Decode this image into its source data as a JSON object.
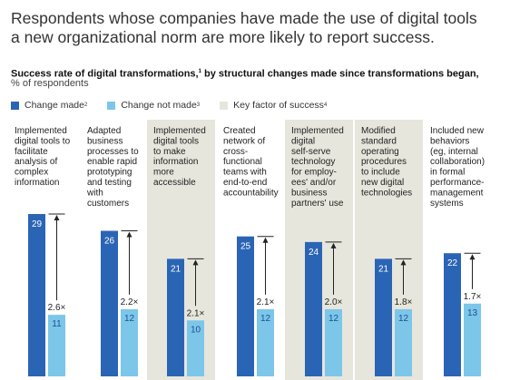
{
  "headline_line1": "Respondents whose companies have made the use of digital tools",
  "headline_line2": "a new organizational norm are more likely to report success.",
  "subtitle_main": "Success rate of digital transformations,",
  "subtitle_sup": "1",
  "subtitle_rest": " by structural changes made since transformations began,",
  "unit": "% of respondents",
  "legend": [
    {
      "label": "Change made",
      "sup": "2",
      "color": "#2a64b5"
    },
    {
      "label": "Change not made",
      "sup": "3",
      "color": "#7cc6ea"
    },
    {
      "label": "Key factor of success",
      "sup": "4",
      "color": "#e7e6dd"
    }
  ],
  "colors": {
    "change_made": "#2a64b5",
    "change_not_made": "#7cc6ea",
    "key_factor": "#e7e6dd"
  },
  "chart_data": {
    "type": "bar",
    "categories": [
      [
        "Implemented",
        "digital tools to",
        "facilitate",
        "analysis of",
        "complex",
        "information"
      ],
      [
        "Adapted",
        "business",
        "processes to",
        "enable rapid",
        "prototyping",
        "and testing",
        "with",
        "customers"
      ],
      [
        "Implemented",
        "digital tools",
        "to make",
        "information",
        "more",
        "accessible"
      ],
      [
        "Created",
        "network of",
        "cross-",
        "functional",
        "teams with",
        "end-to-end",
        "accountability"
      ],
      [
        "Implemented",
        "digital",
        "self-serve",
        "technology",
        "for employ-",
        "ees' and/or",
        "business",
        "partners' use"
      ],
      [
        "Modified",
        "standard",
        "operating",
        "procedures",
        "to include",
        "new digital",
        "technologies"
      ],
      [
        "Included new",
        "behaviors",
        "(eg, internal",
        "collaboration)",
        "in formal",
        "performance-",
        "management",
        "systems"
      ]
    ],
    "series": [
      {
        "name": "Change made",
        "values": [
          29,
          26,
          21,
          25,
          24,
          21,
          22
        ]
      },
      {
        "name": "Change not made",
        "values": [
          11,
          12,
          10,
          12,
          12,
          12,
          13
        ]
      }
    ],
    "ratios": [
      "2.6×",
      "2.2×",
      "2.1×",
      "2.1×",
      "2.0×",
      "1.8×",
      "1.7×"
    ],
    "key_factor": [
      false,
      false,
      true,
      false,
      true,
      true,
      false
    ]
  }
}
